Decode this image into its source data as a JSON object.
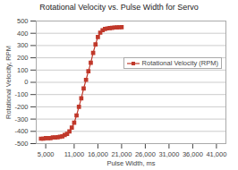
{
  "chart_data": {
    "type": "line",
    "title": "Rotational Velocity vs. Pulse Width for Servo",
    "xlabel": "Pulse Width, ms",
    "ylabel": "Rotational Velocity, RPM",
    "x": [
      4000,
      4500,
      5000,
      5500,
      6000,
      6500,
      7000,
      7500,
      8000,
      8500,
      9000,
      9500,
      10000,
      10500,
      11000,
      11500,
      12000,
      12500,
      13000,
      13500,
      14000,
      14500,
      15000,
      15500,
      16000,
      16500,
      17000,
      17500,
      18000,
      18500,
      19000,
      19500,
      20000,
      20500,
      21000
    ],
    "series": [
      {
        "name": "Rotational Velocity (RPM)",
        "color": "#c0392b",
        "marker": "square",
        "values": [
          -460,
          -460,
          -455,
          -455,
          -455,
          -450,
          -450,
          -448,
          -445,
          -440,
          -430,
          -420,
          -400,
          -370,
          -330,
          -270,
          -200,
          -130,
          -50,
          20,
          90,
          160,
          240,
          310,
          370,
          405,
          425,
          435,
          440,
          443,
          445,
          447,
          448,
          449,
          450
        ]
      }
    ],
    "xlim": [
      3000,
      43000
    ],
    "ylim": [
      -500,
      500
    ],
    "xticks": [
      {
        "value": 5000,
        "label": "5,000"
      },
      {
        "value": 11000,
        "label": "11,000"
      },
      {
        "value": 16000,
        "label": "16,000"
      },
      {
        "value": 21000,
        "label": "21,000"
      },
      {
        "value": 26000,
        "label": "26,000"
      },
      {
        "value": 31000,
        "label": "31,000"
      },
      {
        "value": 36000,
        "label": "36,000"
      },
      {
        "value": 41000,
        "label": "41,000"
      }
    ],
    "yticks": [
      -500,
      -400,
      -300,
      -200,
      -100,
      0,
      100,
      200,
      300,
      400,
      500
    ],
    "grid": "y",
    "legend": "right"
  }
}
